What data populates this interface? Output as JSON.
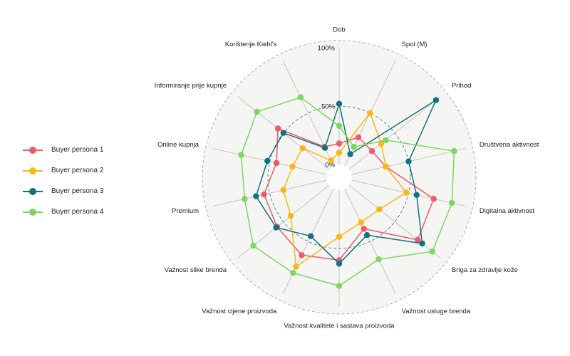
{
  "chart_data": {
    "type": "radar",
    "axes": [
      "Dob",
      "Spol (M)",
      "Prihod",
      "Društvena aktivnost",
      "Digitalna aktivnost",
      "Briga za zdravlje kože",
      "Važnost usluge brenda",
      "Važnost kvalitete i sastava proizvoda",
      "Važnost cijene proizvoda",
      "Važnost slike brenda",
      "Premium",
      "Online kupnja",
      "Informiranje prije kupnje",
      "Korištenje Kiehl's"
    ],
    "ticks": [
      {
        "value": 0,
        "label": "0%"
      },
      {
        "value": 0.5,
        "label": "50%"
      },
      {
        "value": 1,
        "label": "100%"
      }
    ],
    "range": [
      0,
      1
    ],
    "grid": true,
    "legend_position": "left",
    "series": [
      {
        "name": "Buyer persona 1",
        "color": "#EE5A6A",
        "values": [
          0.18,
          0.27,
          0.25,
          0.3,
          0.72,
          0.75,
          0.38,
          0.6,
          0.63,
          0.57,
          0.55,
          0.44,
          0.56,
          0.18
        ]
      },
      {
        "name": "Buyer persona 2",
        "color": "#FDB515",
        "values": [
          0.1,
          0.5,
          0.35,
          0.3,
          0.48,
          0.33,
          0.32,
          0.4,
          0.74,
          0.42,
          0.38,
          0.3,
          0.29,
          0.05
        ]
      },
      {
        "name": "Buyer persona 3",
        "color": "#10727E",
        "values": [
          0.52,
          0.11,
          0.95,
          0.5,
          0.57,
          0.8,
          0.44,
          0.63,
          0.45,
          0.58,
          0.62,
          0.52,
          0.5,
          0.17
        ]
      },
      {
        "name": "Buyer persona 4",
        "color": "#7FD65E",
        "values": [
          0.33,
          0.18,
          0.4,
          0.9,
          0.88,
          0.91,
          0.67,
          0.82,
          0.8,
          0.83,
          0.72,
          0.75,
          0.79,
          0.65
        ]
      }
    ]
  }
}
